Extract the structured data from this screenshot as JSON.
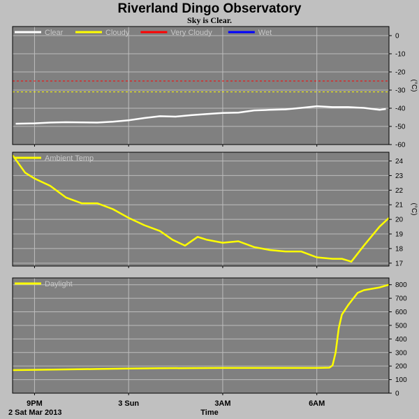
{
  "title": "Riverland Dingo Observatory",
  "subtitle": "Sky is Clear.",
  "colors": {
    "plot_bg": "#808080",
    "grid": "#bdbdbd",
    "frame": "#000000",
    "page_bg": "#c0c0c0"
  },
  "x_axis": {
    "label": "Time",
    "date_label": "2 Sat Mar 2013",
    "ticks": [
      "9PM",
      "3 Sun",
      "3AM",
      "6AM"
    ],
    "tick_hours": [
      21,
      24,
      27,
      30
    ],
    "range_hours": [
      20.3,
      32.3
    ]
  },
  "chart_data": [
    {
      "type": "line",
      "panel": "sky",
      "ylabel": "(°C)",
      "ylim": [
        -60,
        5
      ],
      "yticks": [
        0,
        -10,
        -20,
        -30,
        -40,
        -50,
        -60
      ],
      "grid": true,
      "legend": "top-left",
      "legend_entries": [
        {
          "name": "Clear",
          "color": "#ffffff"
        },
        {
          "name": "Cloudy",
          "color": "#ffff00"
        },
        {
          "name": "Very Cloudy",
          "color": "#ff0000"
        },
        {
          "name": "Wet",
          "color": "#0000ff"
        }
      ],
      "thresholds": [
        {
          "name": "Very Cloudy",
          "value": -25,
          "color": "#ff0000"
        },
        {
          "name": "Cloudy",
          "value": -31,
          "color": "#ffff00"
        }
      ],
      "series": [
        {
          "color": "#ffffff",
          "x": [
            20.4,
            21.0,
            21.5,
            22.0,
            22.5,
            23.0,
            23.5,
            24.0,
            24.5,
            25.0,
            25.5,
            26.0,
            26.5,
            27.0,
            27.5,
            28.0,
            28.5,
            29.0,
            29.5,
            30.0,
            30.5,
            31.0,
            31.5,
            32.0,
            32.2
          ],
          "values": [
            -48.5,
            -48.3,
            -47.9,
            -47.7,
            -47.8,
            -47.9,
            -47.4,
            -46.6,
            -45.4,
            -44.4,
            -44.6,
            -43.8,
            -43.2,
            -42.6,
            -42.4,
            -41.2,
            -40.9,
            -40.6,
            -39.8,
            -38.9,
            -39.4,
            -39.4,
            -39.8,
            -40.9,
            -40.4
          ]
        }
      ]
    },
    {
      "type": "line",
      "panel": "ambient",
      "ylabel": "(°C)",
      "ylim": [
        16.8,
        24.6
      ],
      "yticks": [
        24,
        23,
        22,
        21,
        20,
        19,
        18,
        17
      ],
      "grid": true,
      "legend": "top-left",
      "series": [
        {
          "name": "Ambient Temp",
          "color": "#ffff00",
          "x": [
            20.3,
            20.7,
            21.0,
            21.5,
            22.0,
            22.5,
            23.0,
            23.5,
            24.0,
            24.5,
            25.0,
            25.4,
            25.8,
            26.2,
            26.5,
            27.0,
            27.5,
            28.0,
            28.5,
            29.0,
            29.5,
            30.0,
            30.5,
            30.8,
            31.1,
            31.5,
            32.0,
            32.3
          ],
          "values": [
            24.4,
            23.2,
            22.8,
            22.3,
            21.5,
            21.1,
            21.1,
            20.7,
            20.1,
            19.6,
            19.2,
            18.6,
            18.2,
            18.8,
            18.6,
            18.4,
            18.5,
            18.1,
            17.9,
            17.8,
            17.8,
            17.4,
            17.3,
            17.3,
            17.1,
            18.2,
            19.5,
            20.1
          ]
        }
      ]
    },
    {
      "type": "line",
      "panel": "daylight",
      "ylim": [
        0,
        850
      ],
      "yticks": [
        800,
        700,
        600,
        500,
        400,
        300,
        200,
        100,
        0
      ],
      "grid": true,
      "legend": "top-left",
      "series": [
        {
          "name": "Daylight",
          "color": "#ffff00",
          "x": [
            20.3,
            21.0,
            22.0,
            23.0,
            24.0,
            25.0,
            26.0,
            27.0,
            28.0,
            29.0,
            30.0,
            30.4,
            30.5,
            30.6,
            30.7,
            30.8,
            31.0,
            31.1,
            31.3,
            31.5,
            32.0,
            32.3
          ],
          "values": [
            170,
            172,
            175,
            178,
            182,
            184,
            185,
            186,
            186,
            186,
            186,
            188,
            205,
            300,
            480,
            580,
            650,
            680,
            740,
            760,
            780,
            800
          ]
        }
      ]
    }
  ]
}
